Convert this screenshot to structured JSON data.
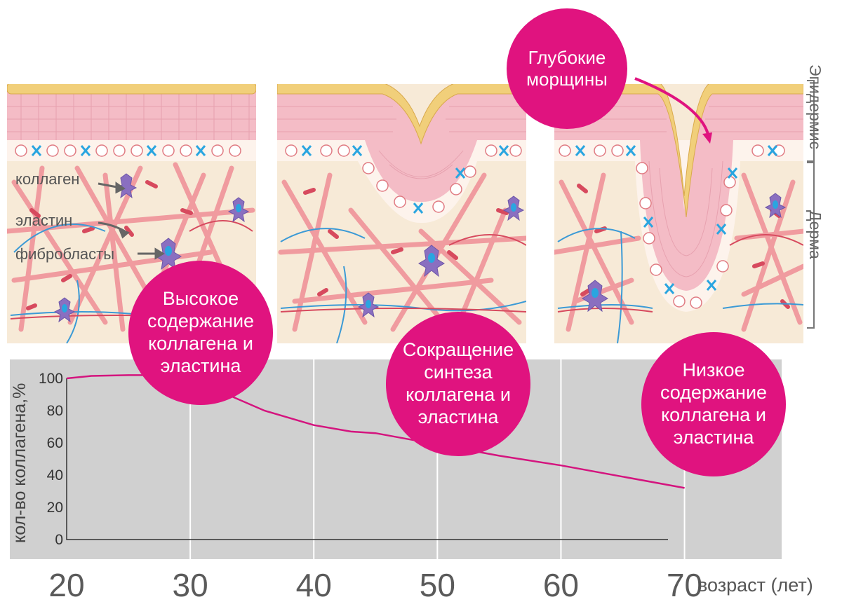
{
  "illustration": {
    "layers": {
      "epidermis": "Эпидермис",
      "dermis": "Дерма"
    },
    "annotations": {
      "collagen": "коллаген",
      "elastin": "эластин",
      "fibroblasts": "фибробласты"
    },
    "colors": {
      "stratum_corneum": "#f1cf7a",
      "epidermis": "#f4bcc6",
      "dermis": "#f7ead7",
      "collagen": "#ef8e96",
      "elastin": "#e15a70",
      "vessel_blue": "#3b9ad6",
      "fibroblast": "#8a6fc0",
      "accent": "#e0137f"
    }
  },
  "bubbles": {
    "wrinkles": "Глубокие\nморщины",
    "high": "Высокое\nсодержание\nколлагена и\nэластина",
    "reduced": "Сокращение\nсинтеза\nколлагена и\nэластина",
    "low": "Низкое\nсодержание\nколлагена и\nэластина"
  },
  "chart_data": {
    "type": "line",
    "title": "",
    "xlabel": "возраст (лет)",
    "ylabel": "кол-во коллагена,%",
    "x_ticks": [
      "20",
      "30",
      "40",
      "50",
      "60",
      "70"
    ],
    "y_ticks": [
      "0",
      "20",
      "40",
      "60",
      "80",
      "100"
    ],
    "xlim": [
      20,
      74
    ],
    "ylim": [
      0,
      100
    ],
    "grid": true,
    "series": [
      {
        "name": "кол-во коллагена",
        "x": [
          20,
          22,
          25,
          27,
          30,
          33,
          36,
          40,
          43,
          45,
          50,
          55,
          60,
          65,
          70
        ],
        "y": [
          100,
          101.5,
          102,
          102,
          101,
          90,
          80,
          71,
          67,
          66,
          59,
          52,
          46,
          39,
          32
        ]
      }
    ],
    "colors": {
      "background": "#d0d0d0",
      "grid": "#ffffff",
      "line": "#d4147e",
      "axis": "#333333"
    }
  }
}
